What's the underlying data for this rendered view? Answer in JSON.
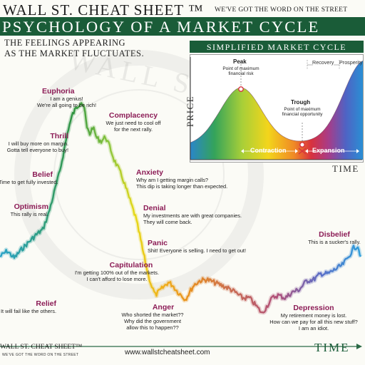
{
  "header": {
    "brand": "WALL ST. CHEAT SHEET ™",
    "tagline": "WE'VE GOT THE WORD ON THE STREET",
    "title": "PSYCHOLOGY OF A MARKET CYCLE",
    "subtitle_line1": "THE FEELINGS APPEARING",
    "subtitle_line2": "AS THE MARKET FLUCTUATES."
  },
  "watermark": {
    "text": "WALL ST."
  },
  "emotions": [
    {
      "id": "euphoria",
      "title": "Euphoria",
      "lines": [
        "I am a genius!",
        "We're all going to be rich!"
      ]
    },
    {
      "id": "thrill",
      "title": "Thrill",
      "lines": [
        "I will buy more on margin.",
        "Gotta tell everyone to buy!"
      ]
    },
    {
      "id": "belief",
      "title": "Belief",
      "lines": [
        "Time to get fully invested."
      ]
    },
    {
      "id": "optimism",
      "title": "Optimism",
      "lines": [
        "This rally is real."
      ]
    },
    {
      "id": "relief",
      "title": "Relief",
      "lines": [
        "It will fail like the others."
      ]
    },
    {
      "id": "complacency",
      "title": "Complacency",
      "lines": [
        "We just need to cool off",
        "for the next rally."
      ]
    },
    {
      "id": "anxiety",
      "title": "Anxiety",
      "lines": [
        "Why am I getting margin calls?",
        "This dip is taking longer than expected."
      ]
    },
    {
      "id": "denial",
      "title": "Denial",
      "lines": [
        "My investments are with great companies.",
        "They will come back."
      ]
    },
    {
      "id": "panic",
      "title": "Panic",
      "lines": [
        "Shit! Everyone is selling. I need to get out!"
      ]
    },
    {
      "id": "capitulation",
      "title": "Capitulation",
      "lines": [
        "I'm getting 100% out of the markets.",
        "I can't afford to lose more."
      ]
    },
    {
      "id": "anger",
      "title": "Anger",
      "lines": [
        "Who shorted the market??",
        "Why did the government",
        "allow this to happen??"
      ]
    },
    {
      "id": "depression",
      "title": "Depression",
      "lines": [
        "My retirement money is lost.",
        "How can we pay for all this new stuff?",
        "I am an idiot."
      ]
    },
    {
      "id": "disbelief",
      "title": "Disbelief",
      "lines": [
        "This is a sucker's rally."
      ]
    }
  ],
  "inset": {
    "title": "SIMPLIFIED MARKET CYCLE",
    "ylabel": "PRICE",
    "xlabel": "TIME",
    "peak_title": "Peak",
    "peak_desc_1": "Point of maximum",
    "peak_desc_2": "financial risk",
    "trough_title": "Trough",
    "trough_desc_1": "Point of maximum",
    "trough_desc_2": "financial opportunity",
    "recovery": "Recovery",
    "prosperity": "Prosperity",
    "contraction": "Contraction",
    "expansion": "Expansion"
  },
  "footer": {
    "brand": "WALL ST. CHEAT SHEET™",
    "brand_sub": "WE'VE GOT THE WORD ON THE STREET",
    "url": "www.wallstcheatsheet.com",
    "time_label": "TIME"
  },
  "colors": {
    "brand_green": "#1a5c38",
    "emotion_title": "#8c1c56"
  }
}
